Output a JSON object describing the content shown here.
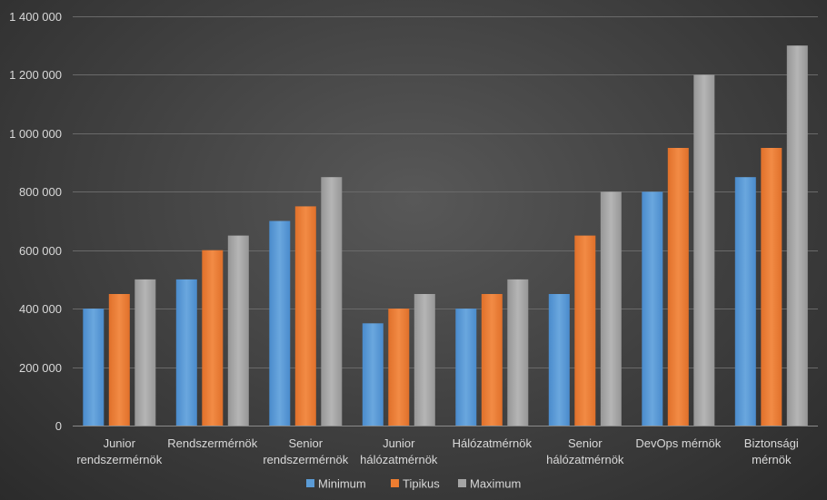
{
  "chart_data": {
    "type": "bar",
    "categories": [
      [
        "Junior",
        "rendszermérnök"
      ],
      [
        "Rendszermérnök"
      ],
      [
        "Senior",
        "rendszermérnök"
      ],
      [
        "Junior",
        "hálózatmérnök"
      ],
      [
        "Hálózatmérnök"
      ],
      [
        "Senior",
        "hálózatmérnök"
      ],
      [
        "DevOps mérnök"
      ],
      [
        "Biztonsági",
        "mérnök"
      ]
    ],
    "series": [
      {
        "name": "Minimum",
        "values": [
          400000,
          500000,
          700000,
          350000,
          400000,
          450000,
          800000,
          850000
        ],
        "color": "#5b9bd5"
      },
      {
        "name": "Tipikus",
        "values": [
          450000,
          600000,
          750000,
          400000,
          450000,
          650000,
          950000,
          950000
        ],
        "color": "#ed7d31"
      },
      {
        "name": "Maximum",
        "values": [
          500000,
          650000,
          850000,
          450000,
          500000,
          800000,
          1200000,
          1300000
        ],
        "color": "#a5a5a5"
      }
    ],
    "ylim": [
      0,
      1400000
    ],
    "yticks": [
      "0",
      "200 000",
      "400 000",
      "600 000",
      "800 000",
      "1 000 000",
      "1 200 000",
      "1 400 000"
    ],
    "ytick_values": [
      0,
      200000,
      400000,
      600000,
      800000,
      1000000,
      1200000,
      1400000
    ],
    "grid": true,
    "legend_position": "bottom"
  }
}
